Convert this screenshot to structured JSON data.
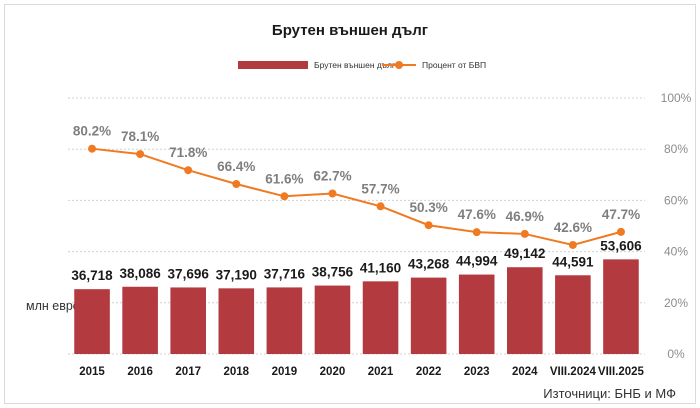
{
  "chart_data": {
    "type": "bar",
    "title": "Брутен външен дълг",
    "categories": [
      "2015",
      "2016",
      "2017",
      "2018",
      "2019",
      "2020",
      "2021",
      "2022",
      "2023",
      "2024",
      "VIII.2024",
      "VIII.2025"
    ],
    "series": [
      {
        "name": "Брутен външен дълг",
        "type": "bar",
        "values": [
          36718,
          38086,
          37696,
          37190,
          37716,
          38756,
          41160,
          43268,
          44994,
          49142,
          44591,
          53606
        ],
        "labels": [
          "36,718",
          "38,086",
          "37,696",
          "37,190",
          "37,716",
          "38,756",
          "41,160",
          "43,268",
          "44,994",
          "49,142",
          "44,591",
          "53,606"
        ],
        "color": "#b33a3f"
      },
      {
        "name": "Процент от БВП",
        "type": "line",
        "axis": "right",
        "values": [
          80.2,
          78.1,
          71.8,
          66.4,
          61.6,
          62.7,
          57.7,
          50.3,
          47.6,
          46.9,
          42.6,
          47.7
        ],
        "labels": [
          "80.2%",
          "78.1%",
          "71.8%",
          "66.4%",
          "61.6%",
          "62.7%",
          "57.7%",
          "50.3%",
          "47.6%",
          "46.9%",
          "42.6%",
          "47.7%"
        ],
        "color": "#f07a22"
      }
    ],
    "y_left_range": [
      0,
      145000
    ],
    "y_right_range": [
      0,
      100
    ],
    "y_right_ticks": [
      "0%",
      "20%",
      "40%",
      "60%",
      "80%",
      "100%"
    ],
    "ylabel": "млн евро",
    "grid": true,
    "legend": "top-center"
  },
  "source": "Източници: БНБ и МФ"
}
